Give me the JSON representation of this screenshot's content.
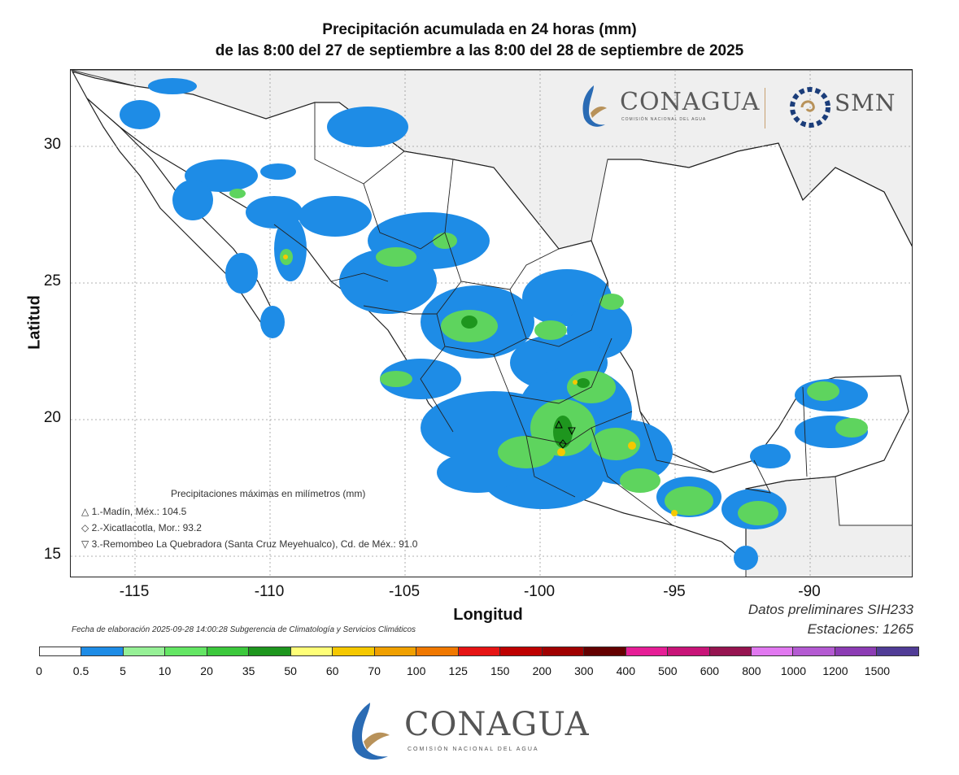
{
  "title_line1": "Precipitación acumulada en 24 horas (mm)",
  "title_line2": "de las 8:00 del 27 de septiembre a las 8:00 del 28 de septiembre de 2025",
  "axes": {
    "xlabel": "Longitud",
    "ylabel": "Latitud",
    "x_ticks": [
      "-115",
      "-110",
      "-105",
      "-100",
      "-95",
      "-90"
    ],
    "y_ticks": [
      "30",
      "25",
      "20",
      "15"
    ],
    "x_range": [
      -117.2,
      -87.8
    ],
    "y_range": [
      14.3,
      32.8
    ],
    "grid": true
  },
  "logos": {
    "conagua": "CONAGUA",
    "conagua_sub": "COMISIÓN NACIONAL DEL AGUA",
    "smn": "SMN"
  },
  "max_precip": {
    "title": "Precipitaciones máximas en milímetros (mm)",
    "items": [
      {
        "symbol": "△",
        "text": "1.-Madín, Méx.: 104.5",
        "value": 104.5,
        "lon": -99.25,
        "lat": 19.5
      },
      {
        "symbol": "◇",
        "text": "2.-Xicatlacotla, Mor.: 93.2",
        "value": 93.2,
        "lon": -99.1,
        "lat": 18.5
      },
      {
        "symbol": "▽",
        "text": "3.-Remombeo La Quebradora (Santa Cruz Meyehualco), Cd. de Méx.: 91.0",
        "value": 91.0,
        "lon": -99.0,
        "lat": 19.35
      }
    ]
  },
  "footer": {
    "preliminary": "Datos preliminares SIH233",
    "stations": "Estaciones:  1265",
    "elaboration": "Fecha de elaboración 2025-09-28 14:00:28 Subgerencia de Climatología y Servicios Climáticos"
  },
  "colorbar": {
    "labels": [
      "0",
      "0.5",
      "5",
      "10",
      "20",
      "35",
      "50",
      "60",
      "70",
      "100",
      "125",
      "150",
      "200",
      "300",
      "400",
      "500",
      "600",
      "800",
      "1000",
      "1200",
      "1500"
    ],
    "colors": [
      "#ffffff",
      "#1e8ce6",
      "#96f096",
      "#64e664",
      "#3cc83c",
      "#1e961e",
      "#ffff78",
      "#f5c800",
      "#f0a000",
      "#f07800",
      "#e61414",
      "#be0000",
      "#a00000",
      "#640000",
      "#e61e96",
      "#c81478",
      "#961450",
      "#e178f0",
      "#b45ad2",
      "#8c3cb4",
      "#503c96"
    ]
  },
  "bottom_logo": {
    "name": "CONAGUA",
    "sub": "COMISIÓN NACIONAL DEL AGUA"
  }
}
